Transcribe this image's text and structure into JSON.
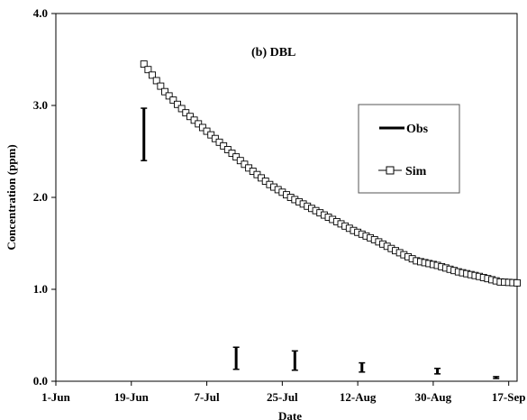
{
  "chart_data": {
    "type": "line",
    "title": "(b) DBL",
    "xlabel": "Date",
    "ylabel": "Concentration (ppm)",
    "x_domain": [
      "2012-06-01",
      "2012-09-19"
    ],
    "x_ticks": [
      {
        "date": "2012-06-01",
        "label": "1-Jun"
      },
      {
        "date": "2012-06-19",
        "label": "19-Jun"
      },
      {
        "date": "2012-07-07",
        "label": "7-Jul"
      },
      {
        "date": "2012-07-25",
        "label": "25-Jul"
      },
      {
        "date": "2012-08-12",
        "label": "12-Aug"
      },
      {
        "date": "2012-08-30",
        "label": "30-Aug"
      },
      {
        "date": "2012-09-17",
        "label": "17-Sep"
      }
    ],
    "ylim": [
      0.0,
      4.0
    ],
    "y_ticks": [
      "0.0",
      "1.0",
      "2.0",
      "3.0",
      "4.0"
    ],
    "grid": false,
    "legend_position": "right",
    "legend": [
      {
        "name": "Obs",
        "style": "thick vertical range bars"
      },
      {
        "name": "Sim",
        "style": "line with open square markers"
      }
    ],
    "series": [
      {
        "name": "Obs",
        "kind": "range",
        "color": "#000000",
        "points": [
          {
            "x": "2012-06-22",
            "low": 2.4,
            "high": 2.97
          },
          {
            "x": "2012-07-14",
            "low": 0.13,
            "high": 0.37
          },
          {
            "x": "2012-07-28",
            "low": 0.12,
            "high": 0.33
          },
          {
            "x": "2012-08-13",
            "low": 0.1,
            "high": 0.2
          },
          {
            "x": "2012-08-31",
            "low": 0.08,
            "high": 0.14
          },
          {
            "x": "2012-09-14",
            "low": 0.03,
            "high": 0.05
          }
        ]
      },
      {
        "name": "Sim",
        "kind": "line",
        "color": "#000000",
        "points": [
          {
            "x": "2012-06-22",
            "y": 3.45
          },
          {
            "x": "2012-06-27",
            "y": 3.15
          },
          {
            "x": "2012-07-02",
            "y": 2.92
          },
          {
            "x": "2012-07-07",
            "y": 2.72
          },
          {
            "x": "2012-07-12",
            "y": 2.52
          },
          {
            "x": "2012-07-17",
            "y": 2.32
          },
          {
            "x": "2012-07-22",
            "y": 2.14
          },
          {
            "x": "2012-07-27",
            "y": 2.0
          },
          {
            "x": "2012-08-01",
            "y": 1.88
          },
          {
            "x": "2012-08-06",
            "y": 1.76
          },
          {
            "x": "2012-08-11",
            "y": 1.64
          },
          {
            "x": "2012-08-16",
            "y": 1.54
          },
          {
            "x": "2012-08-21",
            "y": 1.42
          },
          {
            "x": "2012-08-26",
            "y": 1.31
          },
          {
            "x": "2012-08-31",
            "y": 1.26
          },
          {
            "x": "2012-09-05",
            "y": 1.19
          },
          {
            "x": "2012-09-10",
            "y": 1.14
          },
          {
            "x": "2012-09-15",
            "y": 1.08
          },
          {
            "x": "2012-09-19",
            "y": 1.07
          }
        ]
      }
    ]
  },
  "chart_area": {
    "background": "#ffffff",
    "axis_color": "#000000",
    "legend_border_color": "#555555"
  }
}
